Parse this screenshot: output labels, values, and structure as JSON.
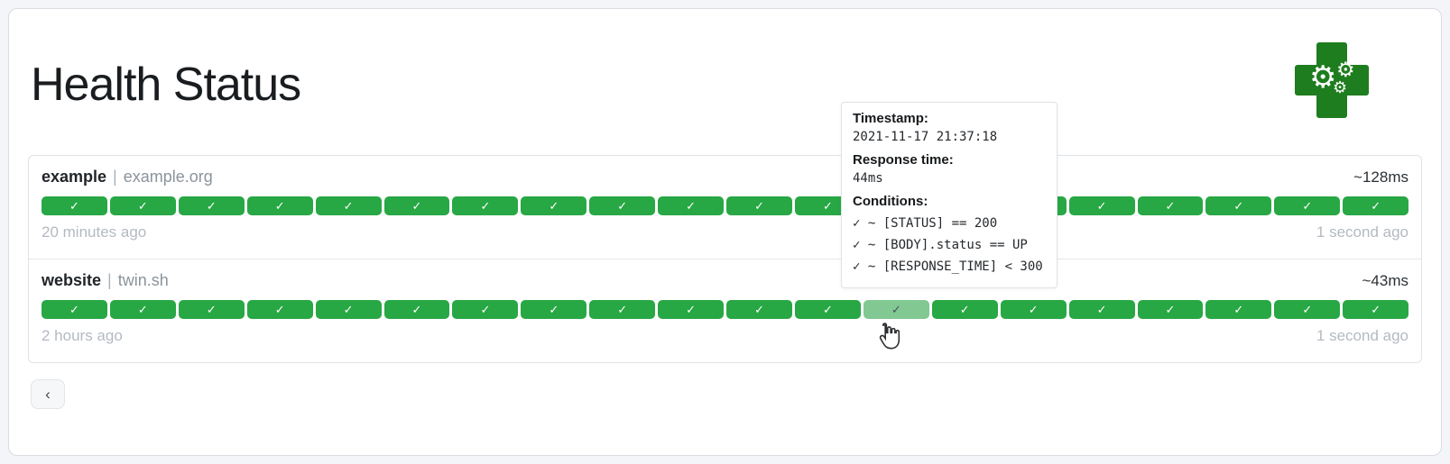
{
  "page": {
    "title": "Health Status"
  },
  "misc": {
    "separator": "|",
    "check_glyph": "✓",
    "gear_glyph": "⚙"
  },
  "colors": {
    "tile_success": "#28a745",
    "tile_hovered": "#82c892",
    "logo_green": "#1e7d1e",
    "muted_text": "#b4bac1"
  },
  "endpoints": [
    {
      "name": "example",
      "host": "example.org",
      "avg_response": "~128ms",
      "oldest": "20 minutes ago",
      "newest": "1 second ago",
      "hovered_index": null,
      "results": [
        "success",
        "success",
        "success",
        "success",
        "success",
        "success",
        "success",
        "success",
        "success",
        "success",
        "success",
        "success",
        "success",
        "success",
        "success",
        "success",
        "success",
        "success",
        "success",
        "success"
      ]
    },
    {
      "name": "website",
      "host": "twin.sh",
      "avg_response": "~43ms",
      "oldest": "2 hours ago",
      "newest": "1 second ago",
      "hovered_index": 12,
      "results": [
        "success",
        "success",
        "success",
        "success",
        "success",
        "success",
        "success",
        "success",
        "success",
        "success",
        "success",
        "success",
        "success",
        "success",
        "success",
        "success",
        "success",
        "success",
        "success",
        "success"
      ]
    }
  ],
  "tooltip": {
    "timestamp_label": "Timestamp:",
    "timestamp": "2021-11-17 21:37:18",
    "response_label": "Response time:",
    "response": "44ms",
    "conditions_label": "Conditions:",
    "conditions": [
      "✓ ~ [STATUS] == 200",
      "✓ ~ [BODY].status == UP",
      "✓ ~ [RESPONSE_TIME] < 300"
    ]
  },
  "pagination": {
    "prev_label": "‹"
  }
}
